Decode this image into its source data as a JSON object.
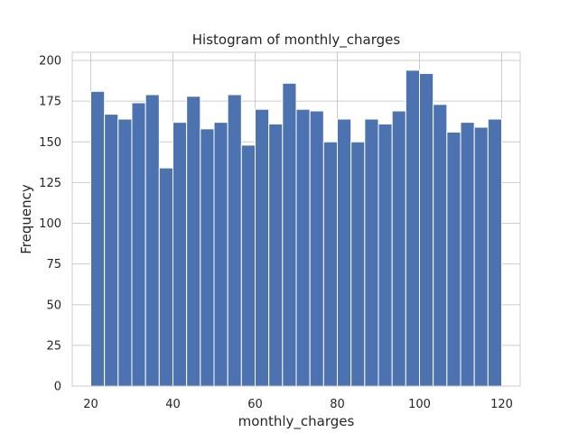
{
  "chart_data": {
    "type": "bar",
    "subtype": "histogram",
    "title": "Histogram of monthly_charges",
    "xlabel": "monthly_charges",
    "ylabel": "Frequency",
    "xlim": [
      15.5,
      124.5
    ],
    "ylim": [
      0,
      205
    ],
    "xticks": [
      20,
      40,
      60,
      80,
      100,
      120
    ],
    "yticks": [
      0,
      25,
      50,
      75,
      100,
      125,
      150,
      175,
      200
    ],
    "grid": true,
    "bar_color": "#4c72b0",
    "bins_start": 20,
    "bin_width": 3.3333,
    "values": [
      181,
      167,
      164,
      174,
      179,
      134,
      162,
      178,
      158,
      162,
      179,
      148,
      170,
      161,
      186,
      170,
      169,
      150,
      164,
      150,
      164,
      161,
      169,
      194,
      192,
      173,
      156,
      162,
      159,
      164
    ]
  }
}
